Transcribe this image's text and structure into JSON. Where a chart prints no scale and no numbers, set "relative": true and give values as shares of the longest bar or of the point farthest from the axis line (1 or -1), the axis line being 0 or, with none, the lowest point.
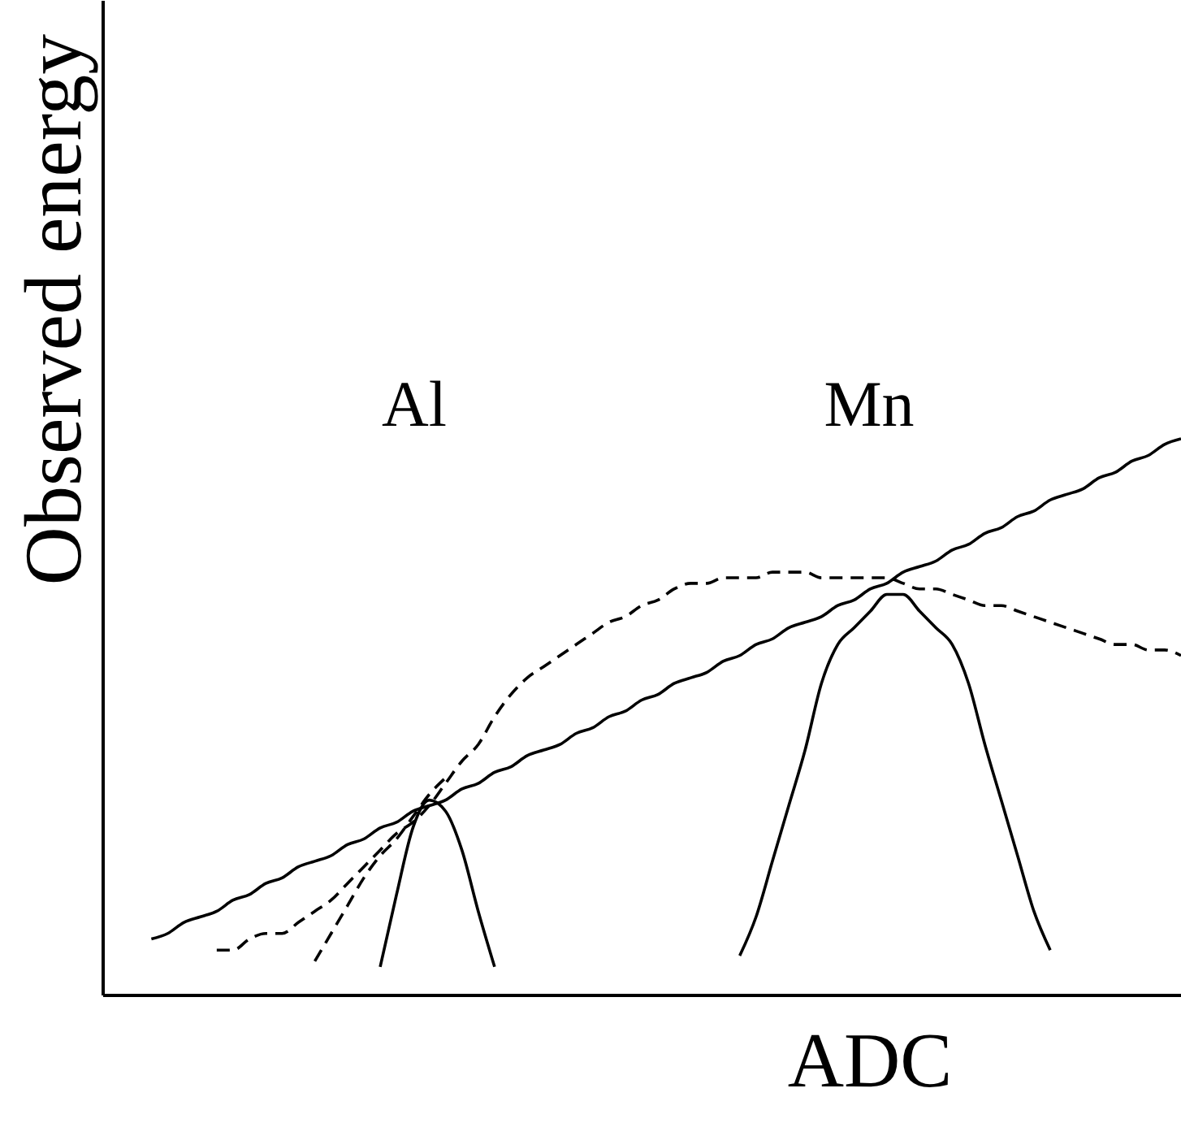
{
  "chart_data": {
    "type": "line",
    "relative": true,
    "xlabel": "ADC",
    "ylabel": "Observed energy",
    "tick_labels": false,
    "annotations": [
      "Al",
      "Mn"
    ],
    "categories": [
      null,
      null,
      null,
      null,
      null,
      null,
      null,
      null,
      null,
      null,
      null,
      null,
      null,
      null,
      null,
      null,
      null,
      null,
      null,
      null,
      null,
      null,
      null,
      null,
      null,
      null,
      null,
      null,
      null,
      null,
      null,
      null,
      null,
      null,
      null,
      null,
      null,
      null,
      null,
      null,
      null,
      null,
      null,
      null,
      null,
      null,
      null,
      null,
      null,
      null,
      null,
      null,
      null,
      null,
      null,
      null,
      null,
      null,
      null,
      null,
      null,
      null,
      null,
      null,
      null,
      null,
      null
    ],
    "series": [
      {
        "color": "#000000",
        "line_style": "solid",
        "values": [
          null,
          null,
          null,
          0.1,
          0.11,
          0.13,
          0.14,
          0.15,
          0.17,
          0.18,
          0.2,
          0.21,
          0.23,
          0.24,
          0.25,
          0.27,
          0.28,
          0.3,
          0.31,
          0.33,
          0.34,
          0.35,
          0.37,
          0.38,
          0.4,
          0.41,
          0.43,
          0.44,
          0.45,
          0.47,
          0.48,
          0.5,
          0.51,
          0.53,
          0.54,
          0.56,
          0.57,
          0.58,
          0.6,
          0.61,
          0.63,
          0.64,
          0.66,
          0.67,
          0.68,
          0.7,
          0.71,
          0.73,
          0.74,
          0.76,
          0.77,
          0.78,
          0.8,
          0.81,
          0.83,
          0.84,
          0.86,
          0.87,
          0.89,
          0.9,
          0.91,
          0.93,
          0.94,
          0.96,
          0.97,
          0.99,
          1.0
        ]
      },
      {
        "color": "#000000",
        "line_style": "solid",
        "values": [
          null,
          null,
          null,
          null,
          null,
          null,
          null,
          null,
          null,
          null,
          null,
          null,
          null,
          null,
          null,
          null,
          null,
          0.05,
          0.18,
          0.3,
          0.35,
          0.33,
          0.26,
          0.15,
          0.05,
          null,
          null,
          null,
          null,
          null,
          null,
          null,
          null,
          null,
          null,
          null,
          null,
          null,
          null,
          null,
          null,
          null,
          null,
          null,
          null,
          null,
          null,
          null,
          null,
          null,
          null,
          null,
          null,
          null,
          null,
          null,
          null,
          null,
          null,
          null,
          null,
          null,
          null,
          null,
          null,
          null,
          null
        ]
      },
      {
        "color": "#000000",
        "line_style": "solid",
        "values": [
          null,
          null,
          null,
          null,
          null,
          null,
          null,
          null,
          null,
          null,
          null,
          null,
          null,
          null,
          null,
          null,
          null,
          null,
          null,
          null,
          null,
          null,
          null,
          null,
          null,
          null,
          null,
          null,
          null,
          null,
          null,
          null,
          null,
          null,
          null,
          null,
          null,
          null,
          null,
          0.07,
          0.14,
          0.24,
          0.34,
          0.44,
          0.56,
          0.63,
          0.66,
          0.69,
          0.72,
          0.72,
          0.69,
          0.66,
          0.63,
          0.56,
          0.45,
          0.35,
          0.25,
          0.15,
          0.08,
          null,
          null,
          null,
          null,
          null,
          null,
          null,
          null
        ]
      },
      {
        "color": "#000000",
        "line_style": "dashed",
        "values": [
          null,
          null,
          null,
          null,
          null,
          null,
          null,
          0.08,
          0.08,
          0.1,
          0.11,
          0.11,
          0.13,
          0.15,
          0.17,
          0.2,
          0.23,
          0.26,
          0.29,
          0.31,
          0.34,
          0.38,
          0.42,
          0.45,
          0.5,
          0.54,
          0.57,
          0.59,
          0.61,
          0.63,
          0.65,
          0.67,
          0.68,
          0.7,
          0.71,
          0.73,
          0.74,
          0.74,
          0.75,
          0.75,
          0.75,
          0.76,
          0.76,
          0.76,
          0.75,
          0.75,
          0.75,
          0.75,
          0.75,
          0.74,
          0.73,
          0.73,
          0.72,
          0.71,
          0.7,
          0.7,
          0.69,
          0.68,
          0.67,
          0.66,
          0.65,
          0.64,
          0.63,
          0.63,
          0.62,
          0.62,
          0.61
        ]
      },
      {
        "color": "#000000",
        "line_style": "dashed",
        "values": [
          null,
          null,
          null,
          null,
          null,
          null,
          null,
          null,
          null,
          null,
          null,
          null,
          null,
          0.06,
          0.11,
          0.16,
          0.21,
          0.25,
          0.28,
          0.32,
          0.36,
          0.39,
          null,
          null,
          null,
          null,
          null,
          null,
          null,
          null,
          null,
          null,
          null,
          null,
          null,
          null,
          null,
          null,
          null,
          null,
          null,
          null,
          null,
          null,
          null,
          null,
          null,
          null,
          null,
          null,
          null,
          null,
          null,
          null,
          null,
          null,
          null,
          null,
          null,
          null,
          null,
          null,
          null,
          null,
          null,
          null,
          null
        ]
      }
    ]
  }
}
